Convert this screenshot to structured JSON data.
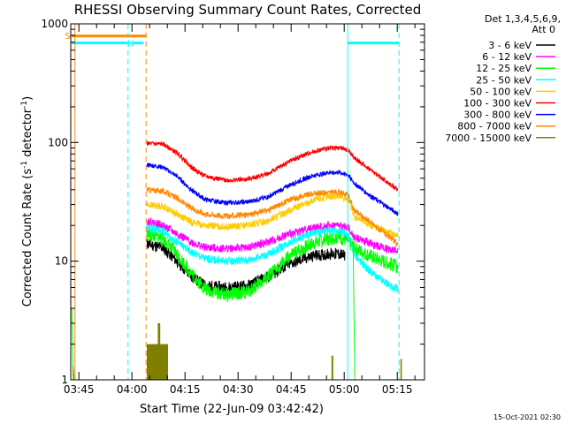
{
  "chart_data": {
    "type": "line",
    "title": "RHESSI Observing Summary Count Rates, Corrected",
    "xlabel": "Start Time (22-Jun-09 03:42:42)",
    "ylabel": "Corrected Count Rate (s",
    "ylabel_sup1": "-1",
    "ylabel_mid": " detector",
    "ylabel_sup2": "-1",
    "ylabel_end": ")",
    "x_unit": "minutes after 03:42:42",
    "x_start": "03:42:42",
    "xlim": [
      0,
      100
    ],
    "ylim": [
      1,
      1000
    ],
    "y_scale": "log",
    "x_ticks": [
      {
        "value": 2.3,
        "label": "03:45"
      },
      {
        "value": 17.3,
        "label": "04:00"
      },
      {
        "value": 32.3,
        "label": "04:15"
      },
      {
        "value": 47.3,
        "label": "04:30"
      },
      {
        "value": 62.3,
        "label": "04:45"
      },
      {
        "value": 77.3,
        "label": "05:00"
      },
      {
        "value": 92.3,
        "label": "05:15"
      }
    ],
    "y_ticks": [
      {
        "value": 1,
        "label": "1"
      },
      {
        "value": 10,
        "label": "10"
      },
      {
        "value": 100,
        "label": "100"
      },
      {
        "value": 1000,
        "label": "1000"
      }
    ],
    "legend": {
      "placement": "right",
      "header1": "Det 1,3,4,5,6,9,",
      "header2": "Att 0"
    },
    "series": [
      {
        "name": "3 - 6 keV",
        "color": "#000000",
        "seed": 11,
        "noise": 0.05,
        "points": [
          [
            21.5,
            14
          ],
          [
            26,
            13
          ],
          [
            30,
            10
          ],
          [
            34,
            7.5
          ],
          [
            38,
            6.2
          ],
          [
            44,
            6.0
          ],
          [
            50,
            6.2
          ],
          [
            56,
            7.5
          ],
          [
            62,
            9.5
          ],
          [
            68,
            11
          ],
          [
            73,
            11.5
          ],
          [
            76,
            11.5
          ],
          [
            77.5,
            11
          ]
        ]
      },
      {
        "name": "6 - 12 keV",
        "color": "#ff00ff",
        "seed": 22,
        "noise": 0.035,
        "points": [
          [
            21.5,
            22
          ],
          [
            26,
            20
          ],
          [
            30,
            17
          ],
          [
            34,
            14.5
          ],
          [
            38,
            13
          ],
          [
            44,
            12.8
          ],
          [
            50,
            13
          ],
          [
            56,
            14.5
          ],
          [
            62,
            17
          ],
          [
            68,
            19
          ],
          [
            73,
            20
          ],
          [
            76,
            20
          ],
          [
            78.5,
            19
          ],
          [
            80,
            16
          ],
          [
            85,
            14
          ],
          [
            90,
            12.5
          ],
          [
            92.5,
            12.5
          ]
        ]
      },
      {
        "name": "12 - 25 keV",
        "color": "#00ff00",
        "seed": 33,
        "noise": 0.06,
        "points": [
          [
            21.5,
            17
          ],
          [
            26,
            15.5
          ],
          [
            30,
            11.5
          ],
          [
            34,
            8
          ],
          [
            38,
            5.8
          ],
          [
            44,
            5.2
          ],
          [
            50,
            5.5
          ],
          [
            56,
            7.5
          ],
          [
            62,
            11
          ],
          [
            68,
            14
          ],
          [
            73,
            15.5
          ],
          [
            76,
            16
          ],
          [
            78,
            15
          ],
          [
            80,
            13
          ],
          [
            85,
            11
          ],
          [
            90,
            9.5
          ],
          [
            92.5,
            9
          ]
        ]
      },
      {
        "name": "25 - 50 keV",
        "color": "#00ffff",
        "seed": 44,
        "noise": 0.035,
        "points": [
          [
            21.5,
            19
          ],
          [
            26,
            18
          ],
          [
            30,
            14.5
          ],
          [
            34,
            12
          ],
          [
            38,
            10.5
          ],
          [
            44,
            10
          ],
          [
            50,
            10.2
          ],
          [
            56,
            11.5
          ],
          [
            62,
            14.5
          ],
          [
            68,
            17
          ],
          [
            73,
            18
          ],
          [
            76,
            18
          ],
          [
            78.5,
            17
          ],
          [
            80,
            11.5
          ],
          [
            84,
            8.5
          ],
          [
            88,
            6.8
          ],
          [
            92.5,
            5.8
          ]
        ]
      },
      {
        "name": "50 - 100 keV",
        "color": "#ffcc00",
        "seed": 55,
        "noise": 0.03,
        "points": [
          [
            21.5,
            30
          ],
          [
            26,
            29
          ],
          [
            30,
            25
          ],
          [
            34,
            21.5
          ],
          [
            38,
            20
          ],
          [
            44,
            19.5
          ],
          [
            50,
            20
          ],
          [
            56,
            22
          ],
          [
            62,
            27
          ],
          [
            68,
            32
          ],
          [
            73,
            35
          ],
          [
            76,
            35
          ],
          [
            78.5,
            33
          ],
          [
            80,
            24
          ],
          [
            85,
            20
          ],
          [
            90,
            17.5
          ],
          [
            92.5,
            16.5
          ]
        ]
      },
      {
        "name": "100 - 300 keV",
        "color": "#ff0000",
        "seed": 66,
        "noise": 0.02,
        "points": [
          [
            21.5,
            98
          ],
          [
            26,
            97
          ],
          [
            30,
            82
          ],
          [
            34,
            62
          ],
          [
            38,
            52
          ],
          [
            44,
            48
          ],
          [
            50,
            49
          ],
          [
            56,
            55
          ],
          [
            62,
            70
          ],
          [
            68,
            83
          ],
          [
            73,
            90
          ],
          [
            76,
            90
          ],
          [
            78.5,
            86
          ],
          [
            80,
            75
          ],
          [
            85,
            58
          ],
          [
            90,
            45
          ],
          [
            92.5,
            40
          ]
        ]
      },
      {
        "name": "300 - 800 keV",
        "color": "#0000ff",
        "seed": 77,
        "noise": 0.02,
        "points": [
          [
            21.5,
            65
          ],
          [
            26,
            62
          ],
          [
            30,
            52
          ],
          [
            34,
            40
          ],
          [
            38,
            33
          ],
          [
            44,
            31
          ],
          [
            50,
            31.5
          ],
          [
            56,
            35
          ],
          [
            62,
            44
          ],
          [
            68,
            52
          ],
          [
            73,
            56
          ],
          [
            76,
            56
          ],
          [
            78.5,
            53
          ],
          [
            80,
            46
          ],
          [
            85,
            35
          ],
          [
            90,
            28
          ],
          [
            92.5,
            25
          ]
        ]
      },
      {
        "name": "800 - 7000 keV",
        "color": "#ff8800",
        "seed": 88,
        "noise": 0.025,
        "points": [
          [
            21.5,
            40
          ],
          [
            26,
            39
          ],
          [
            30,
            34
          ],
          [
            34,
            28
          ],
          [
            38,
            25
          ],
          [
            44,
            24
          ],
          [
            50,
            24.5
          ],
          [
            56,
            27
          ],
          [
            62,
            33
          ],
          [
            68,
            37
          ],
          [
            73,
            38
          ],
          [
            76,
            38
          ],
          [
            78.5,
            36
          ],
          [
            80,
            27
          ],
          [
            85,
            21
          ],
          [
            90,
            16
          ],
          [
            92.5,
            14
          ]
        ]
      },
      {
        "name": "7000 - 15000 keV",
        "color": "#808000",
        "seed": 99,
        "noise": 0.0,
        "points": []
      }
    ],
    "attenuator_bars": {
      "color": "#808000",
      "blocks": [
        [
          21.5,
          27.5,
          2
        ],
        [
          24.6,
          25.3,
          3
        ],
        [
          73.7,
          74.2,
          1.6
        ],
        [
          93.2,
          93.6,
          1.5
        ]
      ]
    },
    "low_traces": [
      {
        "color": "#00ff00",
        "x": [
          0.3,
          0.7
        ],
        "y": [
          4,
          1
        ]
      },
      {
        "color": "#808000",
        "x": [
          0.6,
          1.0
        ],
        "y": [
          1.3,
          1
        ]
      },
      {
        "color": "#00ff00",
        "x": [
          79.8,
          80.3
        ],
        "y": [
          16,
          1
        ]
      }
    ],
    "segment_lines": [
      {
        "color": "#00ffff",
        "x": [
          0.3,
          16
        ],
        "y": 690,
        "style": "solid"
      },
      {
        "color": "#00ffff",
        "x": [
          17.3,
          20.5
        ],
        "y": 690,
        "style": "solid"
      },
      {
        "color": "#00ffff",
        "x": [
          78.3,
          92.8
        ],
        "y": 690,
        "style": "solid"
      },
      {
        "color": "#ff8800",
        "x": [
          0.3,
          21.3
        ],
        "y": 790,
        "style": "solid"
      }
    ],
    "vertical_markers": [
      {
        "color": "#ff8800",
        "x": 1.2,
        "style": "solid"
      },
      {
        "color": "#00ffff",
        "x": 16.2,
        "style": "dashed"
      },
      {
        "color": "#ff8800",
        "x": 21.3,
        "style": "dashed"
      },
      {
        "color": "#00ffff",
        "x": 78.3,
        "style": "solid"
      },
      {
        "color": "#00ffff",
        "x": 92.8,
        "style": "dashed"
      }
    ],
    "flags": [
      {
        "text": "S",
        "color": "#ff8800",
        "x": 0.3,
        "y": 800
      },
      {
        "text": "N",
        "color": "#00ffff",
        "x": 18.0,
        "y": 690
      }
    ],
    "timestamp": "15-Oct-2021 02:30"
  }
}
